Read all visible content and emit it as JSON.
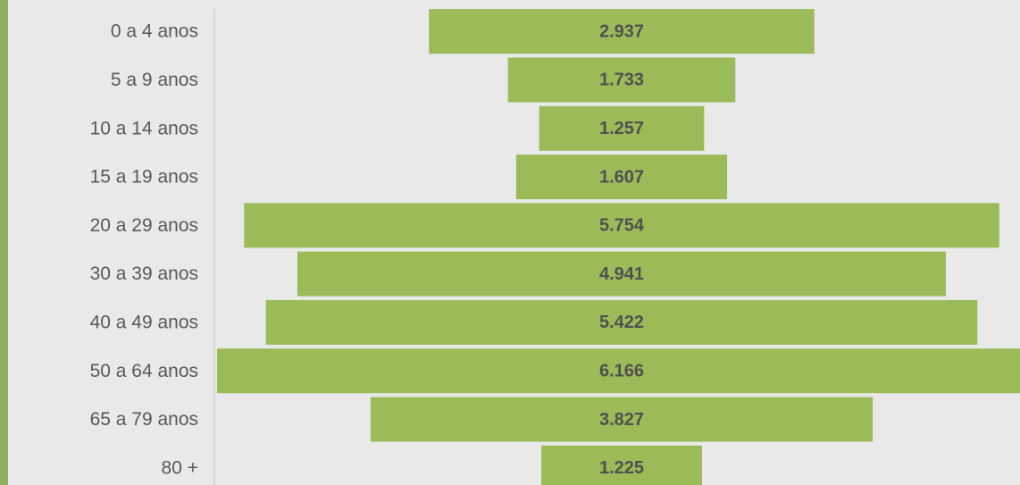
{
  "chart_data": {
    "type": "funnel",
    "categories": [
      "0 a 4 anos",
      "5 a 9 anos",
      "10 a 14 anos",
      "15 a 19 anos",
      "20 a 29 anos",
      "30 a 39 anos",
      "40 a 49 anos",
      "50 a 64 anos",
      "65 a 79 anos",
      "80 +"
    ],
    "values": [
      2937,
      1733,
      1257,
      1607,
      5754,
      4941,
      5422,
      6166,
      3827,
      1225
    ],
    "value_labels": [
      "2.937",
      "1.733",
      "1.257",
      "1.607",
      "5.754",
      "4.941",
      "5.422",
      "6.166",
      "3.827",
      "1.225"
    ],
    "color": "#9bbb59"
  }
}
